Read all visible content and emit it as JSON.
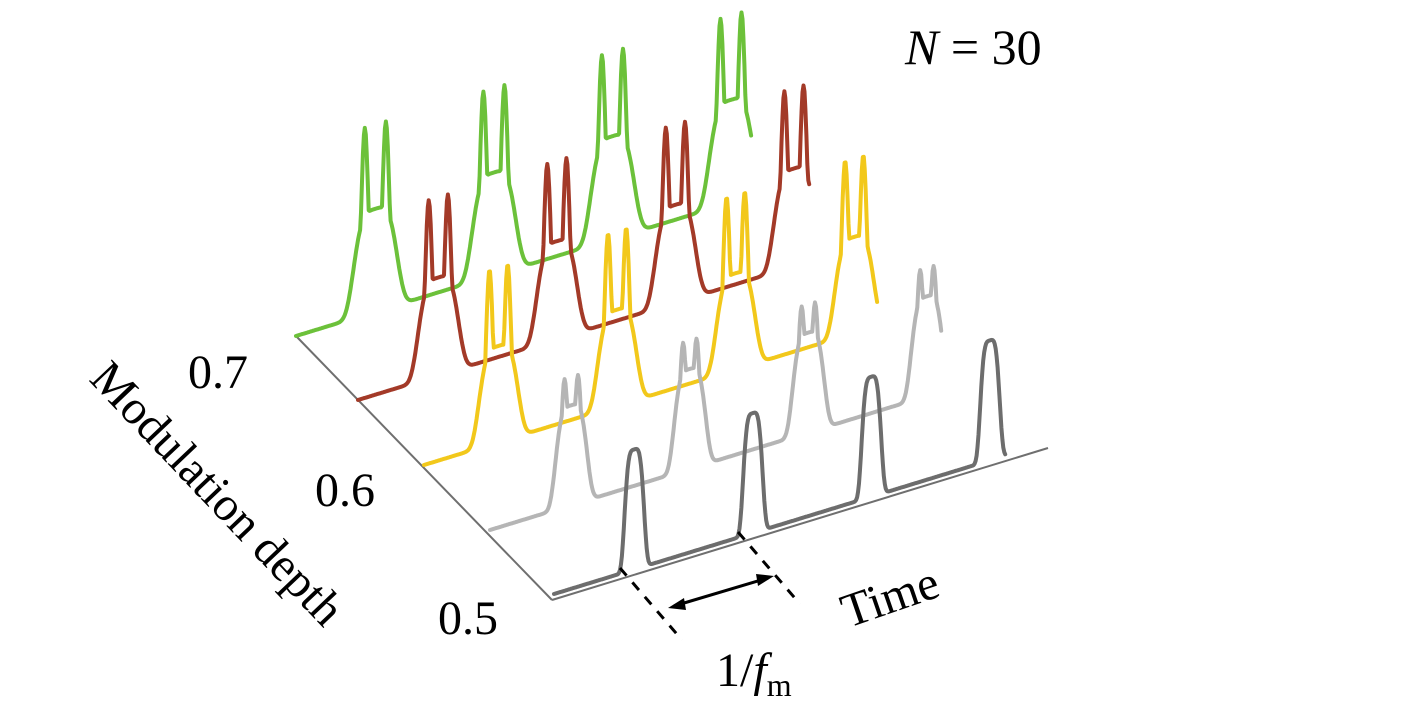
{
  "title": {
    "var": "N",
    "eq": " = ",
    "val": "30"
  },
  "y_axis": {
    "label": "Modulation depth",
    "ticks": [
      "0.5",
      "0.6",
      "0.7"
    ]
  },
  "x_axis": {
    "label": "Time"
  },
  "period": {
    "num": "1/",
    "var": "f",
    "sub": "m"
  },
  "colors": {
    "axis": "#6f6f6f",
    "trace_1": "#6d6d6d",
    "trace_2": "#b5b5b5",
    "trace_3": "#f2c81b",
    "trace_4": "#a33a28",
    "trace_5": "#6cc13a"
  },
  "traces": [
    {
      "shape": "single-peak",
      "color_key": "trace_1"
    },
    {
      "shape": "shallow-double-peak",
      "color_key": "trace_2"
    },
    {
      "shape": "double-peak",
      "color_key": "trace_3"
    },
    {
      "shape": "double-peak",
      "color_key": "trace_4"
    },
    {
      "shape": "double-peak",
      "color_key": "trace_5"
    }
  ]
}
